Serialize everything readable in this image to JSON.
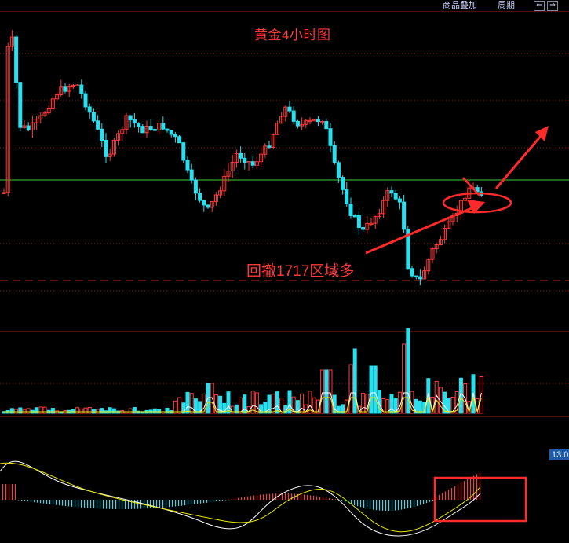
{
  "toolbar": {
    "overlay_label": "商品叠加",
    "period_label": "周期",
    "prev_icon": "arrow-left-icon",
    "next_icon": "arrow-right-icon",
    "prev_glyph": "⇐",
    "next_glyph": "⇒"
  },
  "chart_data": {
    "type": "candlestick",
    "title": "黄金4小时图",
    "annotation": "回撤1717区域多",
    "macd_badge": "13.0",
    "colors": {
      "up": "#ff3b3b",
      "down": "#27e0f0",
      "grid": "#a01a1a",
      "support_line": "#3ad13a",
      "annotation": "#ff2a2a",
      "ma_fast": "#ffffff",
      "ma_slow": "#e8e800",
      "badge": "#1e5aa8"
    },
    "panels": [
      "price",
      "volume",
      "macd"
    ],
    "highlights": [
      "ellipse around latest candles near support",
      "arrow pointing up-right",
      "box around MACD histogram"
    ]
  }
}
